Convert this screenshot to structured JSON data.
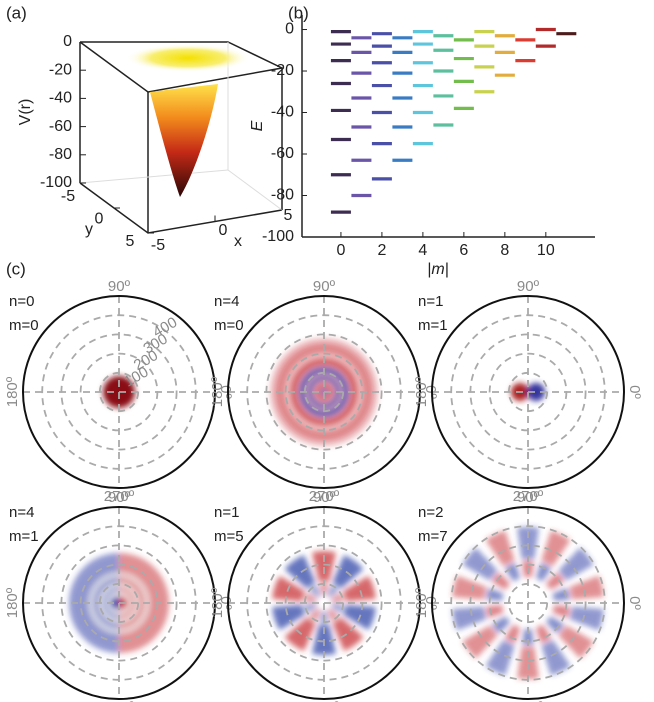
{
  "chart_data": [
    {
      "type": "surface3d",
      "label": "(a)",
      "zlabel": "V(r)",
      "xlabel": "x",
      "ylabel": "y",
      "zlim": [
        -100,
        0
      ],
      "zticks": [
        0,
        -20,
        -40,
        -60,
        -80,
        -100
      ],
      "xlim": [
        -5,
        5
      ],
      "xticks": [
        -5,
        0,
        5
      ],
      "ylim": [
        -5,
        5
      ],
      "yticks": [
        -5,
        0,
        5
      ]
    },
    {
      "type": "scatter",
      "label": "(b)",
      "xlabel": "|m|",
      "ylabel": "E",
      "xlim": [
        -1.9,
        12.4
      ],
      "xticks": [
        0,
        2,
        4,
        6,
        8,
        10
      ],
      "ylim": [
        -100,
        7
      ],
      "yticks": [
        0,
        -20,
        -40,
        -60,
        -80,
        -100
      ],
      "series": [
        {
          "color": "#3d2c52",
          "x": [
            0,
            0,
            0,
            0,
            0,
            0,
            0,
            0
          ],
          "values": [
            -88,
            -70,
            -53,
            -39,
            -26,
            -15,
            -7,
            -1
          ]
        },
        {
          "color": "#6a55a8",
          "x": [
            1,
            1,
            1,
            1,
            1,
            1,
            1
          ],
          "values": [
            -80,
            -63,
            -47,
            -33,
            -21,
            -11,
            -4
          ]
        },
        {
          "color": "#4a4fa8",
          "x": [
            2,
            2,
            2,
            2,
            2,
            2,
            2
          ],
          "values": [
            -72,
            -55,
            -40,
            -27,
            -16,
            -8,
            -2
          ]
        },
        {
          "color": "#3a7cc4",
          "x": [
            3,
            3,
            3,
            3,
            3,
            3
          ],
          "values": [
            -63,
            -47,
            -33,
            -21,
            -11,
            -4
          ]
        },
        {
          "color": "#5ec6dc",
          "x": [
            4,
            4,
            4,
            4,
            4,
            4
          ],
          "values": [
            -55,
            -40,
            -27,
            -16,
            -7,
            -1
          ]
        },
        {
          "color": "#5cbf9e",
          "x": [
            5,
            5,
            5,
            5,
            5
          ],
          "values": [
            -46,
            -32,
            -20,
            -10,
            -3
          ]
        },
        {
          "color": "#72bd4c",
          "x": [
            6,
            6,
            6,
            6
          ],
          "values": [
            -38,
            -25,
            -14,
            -5
          ]
        },
        {
          "color": "#c9d24e",
          "x": [
            7,
            7,
            7,
            7
          ],
          "values": [
            -30,
            -18,
            -8,
            -1
          ]
        },
        {
          "color": "#e2ad3e",
          "x": [
            8,
            8,
            8
          ],
          "values": [
            -22,
            -11,
            -3
          ]
        },
        {
          "color": "#dc3b32",
          "x": [
            9,
            9
          ],
          "values": [
            -15,
            -5
          ]
        },
        {
          "color": "#b22a2a",
          "x": [
            10,
            10
          ],
          "values": [
            -8,
            0
          ]
        },
        {
          "color": "#4b1c1c",
          "x": [
            11
          ],
          "values": [
            -2
          ]
        }
      ]
    },
    {
      "type": "polar",
      "annotations": [
        "n=0",
        "m=0"
      ],
      "rlim": [
        0,
        500
      ],
      "rticks": [
        100,
        200,
        300,
        400
      ],
      "show_rtick_labels": true,
      "angle_labels": [
        "0º",
        "90º",
        "180º",
        "270º"
      ]
    },
    {
      "type": "polar",
      "annotations": [
        "n=4",
        "m=0"
      ],
      "rlim": [
        0,
        500
      ],
      "rticks": [
        100,
        200,
        300,
        400
      ],
      "show_rtick_labels": false,
      "angle_labels": [
        "0º",
        "90º",
        "180º",
        "270º"
      ]
    },
    {
      "type": "polar",
      "annotations": [
        "n=1",
        "m=1"
      ],
      "rlim": [
        0,
        500
      ],
      "rticks": [
        100,
        200,
        300,
        400
      ],
      "show_rtick_labels": false,
      "angle_labels": [
        "0º",
        "90º",
        "180º",
        "270º"
      ]
    },
    {
      "type": "polar",
      "annotations": [
        "n=4",
        "m=1"
      ],
      "rlim": [
        0,
        500
      ],
      "rticks": [
        100,
        200,
        300,
        400
      ],
      "show_rtick_labels": false,
      "angle_labels": [
        "0º",
        "90º",
        "180º",
        "270º"
      ]
    },
    {
      "type": "polar",
      "annotations": [
        "n=1",
        "m=5"
      ],
      "rlim": [
        0,
        500
      ],
      "rticks": [
        100,
        200,
        300,
        400
      ],
      "show_rtick_labels": false,
      "angle_labels": [
        "0º",
        "90º",
        "180º",
        "270º"
      ]
    },
    {
      "type": "polar",
      "annotations": [
        "n=2",
        "m=7"
      ],
      "rlim": [
        0,
        500
      ],
      "rticks": [
        100,
        200,
        300,
        400
      ],
      "show_rtick_labels": false,
      "angle_labels": [
        "0º",
        "90º",
        "180º",
        "270º"
      ]
    }
  ],
  "panel_c_label": "(c)"
}
